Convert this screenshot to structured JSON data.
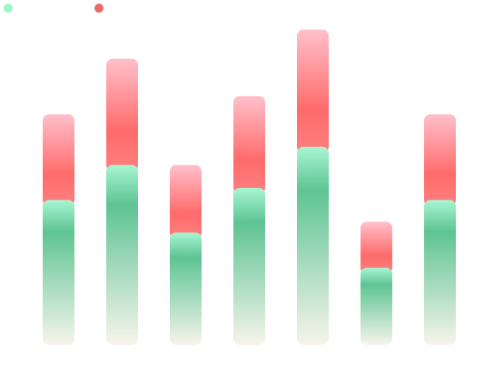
{
  "chart_data": {
    "type": "bar",
    "stacked": true,
    "categories": [
      "",
      "",
      "",
      "",
      "",
      "",
      ""
    ],
    "series": [
      {
        "name": "",
        "color": "#9ef5cc",
        "gradient": [
          "#a8f5d2",
          "#5ec493",
          "#f7f4ec"
        ],
        "values": [
          120,
          149,
          93,
          130,
          164,
          64,
          120
        ]
      },
      {
        "name": "",
        "color": "#ee6666",
        "gradient": [
          "#ffc0cb",
          "#ff6b6b"
        ],
        "values": [
          71,
          88,
          56,
          76,
          97,
          38,
          71
        ]
      }
    ],
    "ylim": [
      0,
      260
    ],
    "grid": false,
    "legend_position": "top-left",
    "title": "",
    "xlabel": "",
    "ylabel": ""
  }
}
